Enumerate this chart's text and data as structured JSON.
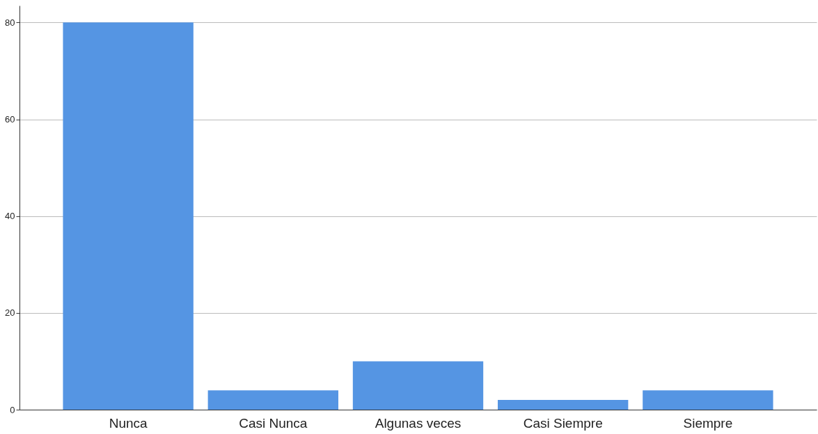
{
  "chart_data": {
    "type": "bar",
    "categories": [
      "Nunca",
      "Casi Nunca",
      "Algunas veces",
      "Casi Siempre",
      "Siempre"
    ],
    "values": [
      80,
      4,
      10,
      2,
      4
    ],
    "color": "#5595e3",
    "ylim": [
      0,
      83.5
    ],
    "yticks": [
      0,
      20,
      40,
      60,
      80
    ],
    "grid": "y"
  }
}
